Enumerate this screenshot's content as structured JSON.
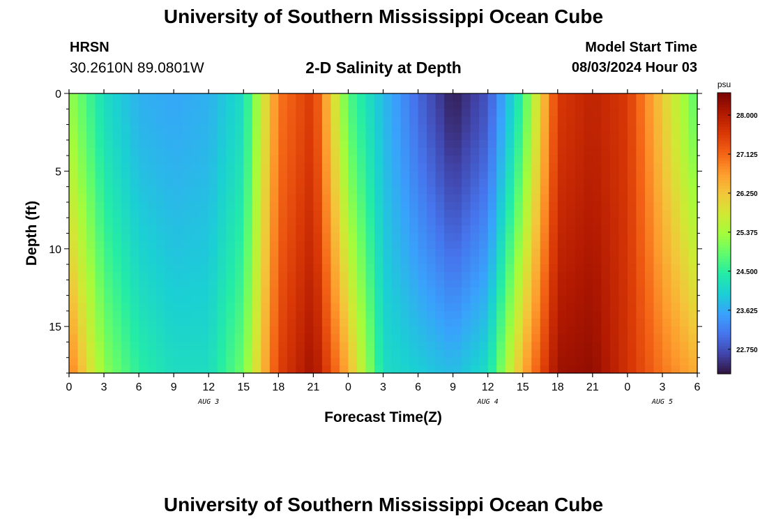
{
  "header": {
    "title": "University of Southern Mississippi Ocean Cube",
    "station": "HRSN",
    "coords": "30.2610N  89.0801W",
    "subtitle": "2-D Salinity at Depth",
    "model_start_label": "Model Start Time",
    "model_start_value": "08/03/2024 Hour 03"
  },
  "footer": {
    "title": "University of Southern Mississippi Ocean Cube"
  },
  "chart_data": {
    "type": "heatmap",
    "title": "2-D Salinity at Depth",
    "xlabel": "Forecast Time(Z)",
    "ylabel": "Depth (ft)",
    "x_tick_labels": [
      "0",
      "3",
      "6",
      "9",
      "12",
      "15",
      "18",
      "21",
      "0",
      "3",
      "6",
      "9",
      "12",
      "15",
      "18",
      "21",
      "0",
      "3",
      "6"
    ],
    "x_hours": [
      0,
      3,
      6,
      9,
      12,
      15,
      18,
      21,
      24,
      27,
      30,
      33,
      36,
      39,
      42,
      45,
      48,
      51,
      54
    ],
    "date_labels": [
      {
        "label": "AUG 3",
        "hour": 12
      },
      {
        "label": "AUG 4",
        "hour": 36
      },
      {
        "label": "AUG 5",
        "hour": 51
      }
    ],
    "xlim": [
      0,
      54
    ],
    "ylim": [
      0,
      18
    ],
    "y_ticks": [
      0,
      5,
      10,
      15
    ],
    "y_tick_labels": [
      "0",
      "5",
      "10",
      "15"
    ],
    "colorbar": {
      "unit": "psu",
      "min": 22.2,
      "max": 28.5,
      "ticks": [
        "28.000",
        "27.125",
        "26.250",
        "25.375",
        "24.500",
        "23.625",
        "22.750"
      ],
      "tick_values": [
        28.0,
        27.125,
        26.25,
        25.375,
        24.5,
        23.625,
        22.75
      ],
      "colors": [
        "#30123b",
        "#4145ab",
        "#4675ed",
        "#39a2fc",
        "#1bcfd4",
        "#24eca6",
        "#61fc6c",
        "#a4fc3b",
        "#d1e834",
        "#f3c63a",
        "#fe9b2d",
        "#f36315",
        "#d93806",
        "#b11901",
        "#7a0402"
      ]
    },
    "salinity_profile": {
      "description_hours": [
        0,
        3,
        6,
        9,
        12,
        15,
        18,
        21,
        24,
        27,
        30,
        33,
        36,
        39,
        42,
        45,
        48,
        51,
        54
      ],
      "surface_psu": [
        25.3,
        24.2,
        23.7,
        23.6,
        23.7,
        24.2,
        27.0,
        27.6,
        24.8,
        23.8,
        23.0,
        22.3,
        22.8,
        24.6,
        27.6,
        27.9,
        27.6,
        26.2,
        24.8
      ],
      "bottom_psu": [
        27.0,
        25.2,
        24.5,
        24.2,
        24.2,
        25.0,
        27.5,
        28.2,
        26.5,
        24.2,
        24.0,
        23.8,
        24.2,
        26.5,
        28.2,
        28.3,
        27.7,
        27.0,
        26.5
      ]
    }
  }
}
